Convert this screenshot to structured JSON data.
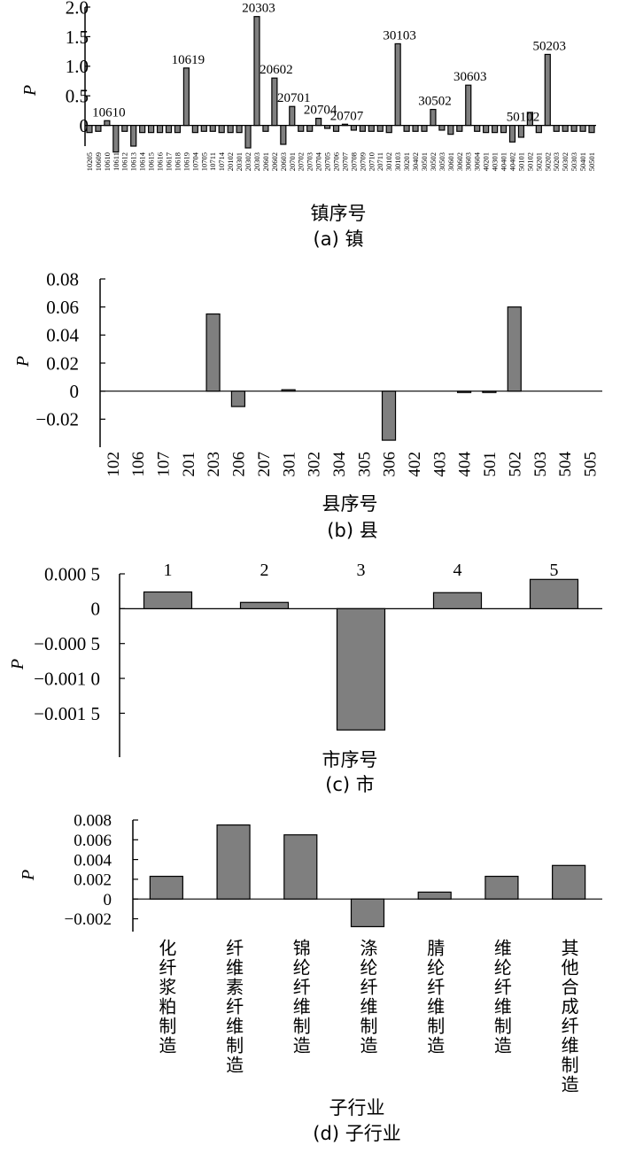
{
  "chart_data": [
    {
      "type": "bar",
      "panel": "a",
      "caption": "(a) 镇",
      "xlabel": "镇序号",
      "ylabel": "P",
      "ylim": [
        -0.35,
        2.0
      ],
      "yticks": [
        "2.0",
        "1.5",
        "1.0",
        "0.5",
        "0"
      ],
      "bar_fill": "#7f7f7f",
      "categories": [
        "10205",
        "10609",
        "10610",
        "10611",
        "10612",
        "10613",
        "10614",
        "10615",
        "10616",
        "10617",
        "10618",
        "10619",
        "10704",
        "10705",
        "10711",
        "10714",
        "20102",
        "20301",
        "20302",
        "20303",
        "20601",
        "20602",
        "20603",
        "20701",
        "20702",
        "20703",
        "20704",
        "20705",
        "20706",
        "20707",
        "20708",
        "20709",
        "20710",
        "20711",
        "30102",
        "30103",
        "30201",
        "30402",
        "30501",
        "30502",
        "30503",
        "30601",
        "30602",
        "30603",
        "30604",
        "40201",
        "40301",
        "40401",
        "40402",
        "50101",
        "50102",
        "50201",
        "50202",
        "50203",
        "50302",
        "50303",
        "50401",
        "50501"
      ],
      "values": [
        -0.12,
        -0.1,
        0.08,
        -0.45,
        -0.1,
        -0.35,
        -0.12,
        -0.12,
        -0.12,
        -0.12,
        -0.12,
        0.97,
        -0.12,
        -0.1,
        -0.1,
        -0.12,
        -0.12,
        -0.12,
        -0.38,
        1.84,
        -0.1,
        0.8,
        -0.32,
        0.32,
        -0.1,
        -0.1,
        0.12,
        -0.05,
        -0.1,
        0.02,
        -0.08,
        -0.1,
        -0.1,
        -0.1,
        -0.12,
        1.38,
        -0.1,
        -0.1,
        -0.1,
        0.27,
        -0.08,
        -0.15,
        -0.1,
        0.68,
        -0.1,
        -0.12,
        -0.12,
        -0.12,
        -0.28,
        -0.2,
        0.22,
        -0.12,
        1.2,
        -0.1,
        -0.1,
        -0.1,
        -0.1,
        -0.12
      ],
      "annotations": [
        {
          "index": 2,
          "text": "10610"
        },
        {
          "index": 11,
          "text": "10619"
        },
        {
          "index": 19,
          "text": "20303"
        },
        {
          "index": 21,
          "text": "20602"
        },
        {
          "index": 23,
          "text": "20701"
        },
        {
          "index": 26,
          "text": "20704"
        },
        {
          "index": 29,
          "text": "20707"
        },
        {
          "index": 35,
          "text": "30103"
        },
        {
          "index": 39,
          "text": "30502"
        },
        {
          "index": 43,
          "text": "30603"
        },
        {
          "index": 49,
          "text": "50102"
        },
        {
          "index": 52,
          "text": "50203"
        }
      ]
    },
    {
      "type": "bar",
      "panel": "b",
      "caption": "(b) 县",
      "xlabel": "县序号",
      "ylabel": "P",
      "ylim": [
        -0.04,
        0.08
      ],
      "yticks": [
        "0.08",
        "0.06",
        "0.04",
        "0.02",
        "0",
        "−0.02"
      ],
      "bar_fill": "#7f7f7f",
      "categories": [
        "102",
        "106",
        "107",
        "201",
        "203",
        "206",
        "207",
        "301",
        "302",
        "304",
        "305",
        "306",
        "402",
        "403",
        "404",
        "501",
        "502",
        "503",
        "504",
        "505"
      ],
      "values": [
        0,
        0,
        0,
        0,
        0.055,
        -0.011,
        0,
        0.001,
        0,
        0,
        0,
        -0.035,
        0,
        0,
        -0.001,
        -0.001,
        0.06,
        0,
        0,
        0
      ]
    },
    {
      "type": "bar",
      "panel": "c",
      "caption": "(c) 市",
      "xlabel": "市序号",
      "ylabel": "P",
      "ylim": [
        -0.00213,
        0.0005
      ],
      "yticks": [
        "0.000 5",
        "0",
        "−0.000 5",
        "−0.001 0",
        "−0.001 5"
      ],
      "bar_fill": "#7f7f7f",
      "categories": [
        "1",
        "2",
        "3",
        "4",
        "5"
      ],
      "values": [
        0.00024,
        9e-05,
        -0.00174,
        0.00023,
        0.00042
      ]
    },
    {
      "type": "bar",
      "panel": "d",
      "caption": "(d) 子行业",
      "xlabel": "子行业",
      "ylabel": "P",
      "ylim": [
        -0.0033,
        0.008
      ],
      "yticks": [
        "0.008",
        "0.006",
        "0.004",
        "0.002",
        "0",
        "−0.002"
      ],
      "bar_fill": "#7f7f7f",
      "categories": [
        "化纤浆粕制造",
        "纤维素纤维制造",
        "锦纶纤维制造",
        "涤纶纤维制造",
        "腈纶纤维制造",
        "维纶纤维制造",
        "其他合成纤维制造"
      ],
      "values": [
        0.0023,
        0.0075,
        0.0065,
        -0.0028,
        0.0007,
        0.0023,
        0.0034
      ]
    }
  ]
}
